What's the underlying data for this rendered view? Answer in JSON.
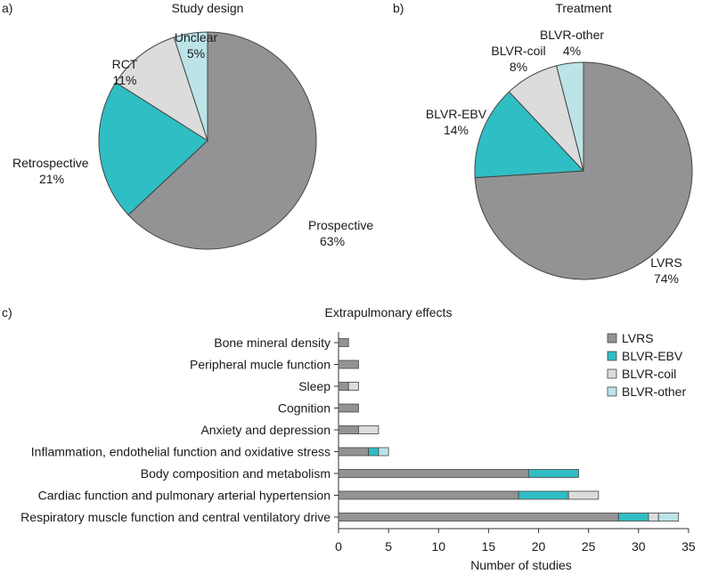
{
  "panels": {
    "a": {
      "label": "a)"
    },
    "b": {
      "label": "b)"
    },
    "c": {
      "label": "c)"
    }
  },
  "colors": {
    "LVRS": "#939395",
    "BLVR-EBV": "#2fbec3",
    "BLVR-coil": "#dcdcdd",
    "BLVR-other": "#bce4e8",
    "Prospective": "#939395",
    "Retrospective": "#2fbec3",
    "RCT": "#dcdcdd",
    "Unclear": "#bce4e8",
    "outline": "#444444"
  },
  "chart_data": [
    {
      "type": "pie",
      "title": "Study design",
      "slices": [
        {
          "name": "Prospective",
          "value": 63,
          "label": "63%"
        },
        {
          "name": "Retrospective",
          "value": 21,
          "label": "21%"
        },
        {
          "name": "RCT",
          "value": 11,
          "label": "11%"
        },
        {
          "name": "Unclear",
          "value": 5,
          "label": "5%"
        }
      ]
    },
    {
      "type": "pie",
      "title": "Treatment",
      "slices": [
        {
          "name": "LVRS",
          "value": 74,
          "label": "74%"
        },
        {
          "name": "BLVR-EBV",
          "value": 14,
          "label": "14%"
        },
        {
          "name": "BLVR-coil",
          "value": 8,
          "label": "8%"
        },
        {
          "name": "BLVR-other",
          "value": 4,
          "label": "4%"
        }
      ]
    },
    {
      "type": "bar",
      "orientation": "horizontal",
      "stacked": true,
      "title": "Extrapulmonary effects",
      "xlabel": "Number of studies",
      "ylabel": "",
      "xlim": [
        0,
        35
      ],
      "xticks": [
        0,
        5,
        10,
        15,
        20,
        25,
        30,
        35
      ],
      "legend_position": "top-right",
      "categories": [
        "Bone mineral density",
        "Peripheral mucle function",
        "Sleep",
        "Cognition",
        "Anxiety and depression",
        "Inflammation, endothelial function and oxidative stress",
        "Body composition and metabolism",
        "Cardiac function and pulmonary arterial hypertension",
        "Respiratory muscle function and central ventilatory drive"
      ],
      "series": [
        {
          "name": "LVRS",
          "values": [
            1,
            2,
            1,
            2,
            2,
            3,
            19,
            18,
            28
          ]
        },
        {
          "name": "BLVR-EBV",
          "values": [
            0,
            0,
            0,
            0,
            0,
            1,
            5,
            5,
            3
          ]
        },
        {
          "name": "BLVR-coil",
          "values": [
            0,
            0,
            1,
            0,
            2,
            0,
            0,
            3,
            1
          ]
        },
        {
          "name": "BLVR-other",
          "values": [
            0,
            0,
            0,
            0,
            0,
            1,
            0,
            0,
            2
          ]
        }
      ]
    }
  ]
}
